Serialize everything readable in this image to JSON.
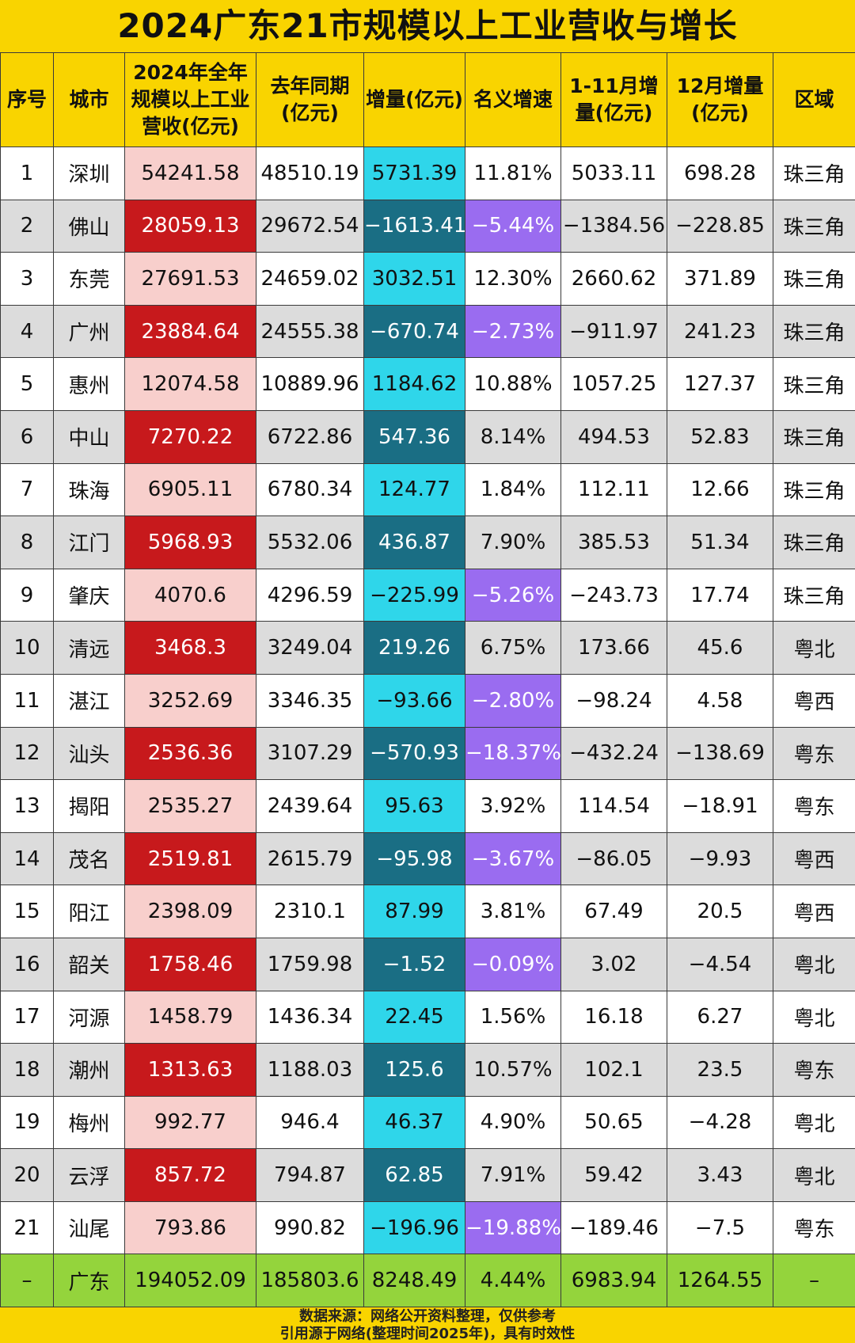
{
  "title": "2024广东21市规模以上工业营收与增长",
  "headers": [
    "序号",
    "城市",
    "2024年全年规模以上工业营收(亿元)",
    "去年同期(亿元)",
    "增量(亿元)",
    "名义增速",
    "1-11月增量(亿元)",
    "12月增量(亿元)",
    "区域"
  ],
  "rows": [
    [
      "1",
      "深圳",
      "54241.58",
      "48510.19",
      "5731.39",
      "11.81%",
      "5033.11",
      "698.28",
      "珠三角"
    ],
    [
      "2",
      "佛山",
      "28059.13",
      "29672.54",
      "−1613.41",
      "−5.44%",
      "−1384.56",
      "−228.85",
      "珠三角"
    ],
    [
      "3",
      "东莞",
      "27691.53",
      "24659.02",
      "3032.51",
      "12.30%",
      "2660.62",
      "371.89",
      "珠三角"
    ],
    [
      "4",
      "广州",
      "23884.64",
      "24555.38",
      "−670.74",
      "−2.73%",
      "−911.97",
      "241.23",
      "珠三角"
    ],
    [
      "5",
      "惠州",
      "12074.58",
      "10889.96",
      "1184.62",
      "10.88%",
      "1057.25",
      "127.37",
      "珠三角"
    ],
    [
      "6",
      "中山",
      "7270.22",
      "6722.86",
      "547.36",
      "8.14%",
      "494.53",
      "52.83",
      "珠三角"
    ],
    [
      "7",
      "珠海",
      "6905.11",
      "6780.34",
      "124.77",
      "1.84%",
      "112.11",
      "12.66",
      "珠三角"
    ],
    [
      "8",
      "江门",
      "5968.93",
      "5532.06",
      "436.87",
      "7.90%",
      "385.53",
      "51.34",
      "珠三角"
    ],
    [
      "9",
      "肇庆",
      "4070.6",
      "4296.59",
      "−225.99",
      "−5.26%",
      "−243.73",
      "17.74",
      "珠三角"
    ],
    [
      "10",
      "清远",
      "3468.3",
      "3249.04",
      "219.26",
      "6.75%",
      "173.66",
      "45.6",
      "粤北"
    ],
    [
      "11",
      "湛江",
      "3252.69",
      "3346.35",
      "−93.66",
      "−2.80%",
      "−98.24",
      "4.58",
      "粤西"
    ],
    [
      "12",
      "汕头",
      "2536.36",
      "3107.29",
      "−570.93",
      "−18.37%",
      "−432.24",
      "−138.69",
      "粤东"
    ],
    [
      "13",
      "揭阳",
      "2535.27",
      "2439.64",
      "95.63",
      "3.92%",
      "114.54",
      "−18.91",
      "粤东"
    ],
    [
      "14",
      "茂名",
      "2519.81",
      "2615.79",
      "−95.98",
      "−3.67%",
      "−86.05",
      "−9.93",
      "粤西"
    ],
    [
      "15",
      "阳江",
      "2398.09",
      "2310.1",
      "87.99",
      "3.81%",
      "67.49",
      "20.5",
      "粤西"
    ],
    [
      "16",
      "韶关",
      "1758.46",
      "1759.98",
      "−1.52",
      "−0.09%",
      "3.02",
      "−4.54",
      "粤北"
    ],
    [
      "17",
      "河源",
      "1458.79",
      "1436.34",
      "22.45",
      "1.56%",
      "16.18",
      "6.27",
      "粤北"
    ],
    [
      "18",
      "潮州",
      "1313.63",
      "1188.03",
      "125.6",
      "10.57%",
      "102.1",
      "23.5",
      "粤东"
    ],
    [
      "19",
      "梅州",
      "992.77",
      "946.4",
      "46.37",
      "4.90%",
      "50.65",
      "−4.28",
      "粤北"
    ],
    [
      "20",
      "云浮",
      "857.72",
      "794.87",
      "62.85",
      "7.91%",
      "59.42",
      "3.43",
      "粤北"
    ],
    [
      "21",
      "汕尾",
      "793.86",
      "990.82",
      "−196.96",
      "−19.88%",
      "−189.46",
      "−7.5",
      "粤东"
    ]
  ],
  "total_row": [
    "–",
    "广东",
    "194052.09",
    "185803.6",
    "8248.49",
    "4.44%",
    "6983.94",
    "1264.55",
    "–"
  ],
  "footer": {
    "line1": "数据来源：网络公开资料整理，仅供参考",
    "line2": "引用源于网络(整理时间2025年)，具有时效性"
  },
  "colors": {
    "header_bg": "#f9d400",
    "revenue_light": "#f8cfcc",
    "revenue_dark": "#c7191c",
    "increase_light": "#2fd6ea",
    "increase_dark": "#1a6e84",
    "negative_rate": "#9a6cf0",
    "total_row": "#94d43c"
  },
  "chart_data": {
    "type": "table",
    "title": "2024广东21市规模以上工业营收与增长",
    "columns": [
      "序号",
      "城市",
      "2024年全年规模以上工业营收(亿元)",
      "去年同期(亿元)",
      "增量(亿元)",
      "名义增速",
      "1-11月增量(亿元)",
      "12月增量(亿元)",
      "区域"
    ]
  }
}
